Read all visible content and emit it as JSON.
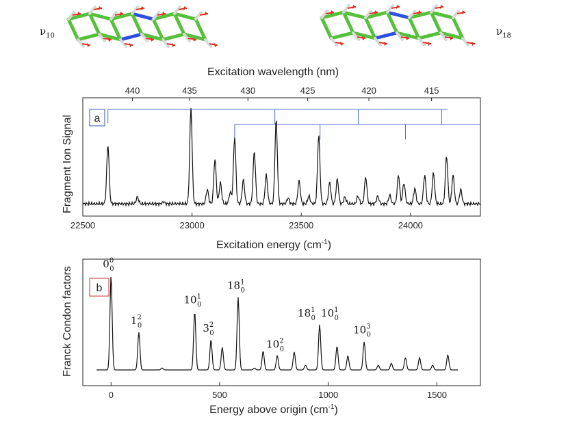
{
  "molecules": {
    "left_mode": {
      "greek": "ν",
      "sub": "10"
    },
    "right_mode": {
      "greek": "ν",
      "sub": "18"
    }
  },
  "chart_data": [
    {
      "panel": "a",
      "type": "line",
      "ylabel": "Fragment Ion Signal",
      "xlabel": "Excitation energy (cm",
      "xlabel_sup": "-1",
      "xlabel_end": ")",
      "top_axis_label": "Excitation wavelength (nm)",
      "xlim": [
        22500,
        24320
      ],
      "xticks": [
        22500,
        23000,
        23500,
        24000
      ],
      "top_ticks_nm": [
        440,
        435,
        430,
        425,
        420,
        415
      ],
      "grid": false,
      "peaks": [
        {
          "x": 22615,
          "h": 0.62
        },
        {
          "x": 22750,
          "h": 0.07
        },
        {
          "x": 22870,
          "h": 0.02
        },
        {
          "x": 22995,
          "h": 1.0
        },
        {
          "x": 23070,
          "h": 0.15
        },
        {
          "x": 23105,
          "h": 0.47
        },
        {
          "x": 23130,
          "h": 0.22
        },
        {
          "x": 23175,
          "h": 0.12
        },
        {
          "x": 23195,
          "h": 0.7
        },
        {
          "x": 23235,
          "h": 0.25
        },
        {
          "x": 23285,
          "h": 0.55
        },
        {
          "x": 23340,
          "h": 0.3
        },
        {
          "x": 23385,
          "h": 0.88
        },
        {
          "x": 23440,
          "h": 0.06
        },
        {
          "x": 23490,
          "h": 0.24
        },
        {
          "x": 23535,
          "h": 0.08
        },
        {
          "x": 23580,
          "h": 0.72
        },
        {
          "x": 23630,
          "h": 0.22
        },
        {
          "x": 23665,
          "h": 0.26
        },
        {
          "x": 23700,
          "h": 0.07
        },
        {
          "x": 23760,
          "h": 0.08
        },
        {
          "x": 23795,
          "h": 0.28
        },
        {
          "x": 23850,
          "h": 0.08
        },
        {
          "x": 23905,
          "h": 0.09
        },
        {
          "x": 23945,
          "h": 0.3
        },
        {
          "x": 23970,
          "h": 0.22
        },
        {
          "x": 24020,
          "h": 0.16
        },
        {
          "x": 24065,
          "h": 0.3
        },
        {
          "x": 24105,
          "h": 0.32
        },
        {
          "x": 24165,
          "h": 0.5
        },
        {
          "x": 24195,
          "h": 0.3
        },
        {
          "x": 24230,
          "h": 0.15
        }
      ],
      "progressions": [
        {
          "start": 22615,
          "spacing": 382,
          "count": 5,
          "line_end": 24170
        },
        {
          "start": 23195,
          "spacing": 391,
          "count": 3,
          "line_end": 24320
        }
      ]
    },
    {
      "panel": "b",
      "type": "line",
      "ylabel": "Franck Condon factors",
      "xlabel": "Energy above origin (cm",
      "xlabel_sup": "-1",
      "xlabel_end": ")",
      "xlim": [
        -130,
        1700
      ],
      "xticks": [
        0,
        500,
        1000,
        1500
      ],
      "grid": false,
      "peaks": [
        {
          "x": 0,
          "h": 1.0
        },
        {
          "x": 128,
          "h": 0.4
        },
        {
          "x": 235,
          "h": 0.02
        },
        {
          "x": 385,
          "h": 0.62
        },
        {
          "x": 460,
          "h": 0.32
        },
        {
          "x": 512,
          "h": 0.24
        },
        {
          "x": 585,
          "h": 0.77
        },
        {
          "x": 660,
          "h": 0.02
        },
        {
          "x": 700,
          "h": 0.2
        },
        {
          "x": 765,
          "h": 0.15
        },
        {
          "x": 843,
          "h": 0.19
        },
        {
          "x": 895,
          "h": 0.05
        },
        {
          "x": 960,
          "h": 0.48
        },
        {
          "x": 1040,
          "h": 0.25
        },
        {
          "x": 1090,
          "h": 0.15
        },
        {
          "x": 1165,
          "h": 0.3
        },
        {
          "x": 1230,
          "h": 0.05
        },
        {
          "x": 1290,
          "h": 0.07
        },
        {
          "x": 1355,
          "h": 0.13
        },
        {
          "x": 1420,
          "h": 0.13
        },
        {
          "x": 1480,
          "h": 0.05
        },
        {
          "x": 1550,
          "h": 0.16
        }
      ],
      "annotations": [
        {
          "base": "0",
          "sup": "0",
          "sub": "0",
          "x": 0,
          "y": 1.0
        },
        {
          "base": "1",
          "sup": "2",
          "sub": "0",
          "x": 128,
          "y": 0.4
        },
        {
          "base": "10",
          "sup": "1",
          "sub": "0",
          "x": 385,
          "y": 0.62
        },
        {
          "base": "3",
          "sup": "2",
          "sub": "0",
          "x": 460,
          "y": 0.32
        },
        {
          "base": "18",
          "sup": "1",
          "sub": "0",
          "x": 585,
          "y": 0.77
        },
        {
          "base": "10",
          "sup": "2",
          "sub": "0",
          "x": 765,
          "y": 0.15
        },
        {
          "base": "18",
          "sup": "1",
          "sub": "0",
          "base2": "10",
          "sup2": "1",
          "sub2": "0",
          "x": 960,
          "y": 0.48
        },
        {
          "base": "10",
          "sup": "3",
          "sub": "0",
          "x": 1165,
          "y": 0.3
        }
      ]
    }
  ],
  "colors": {
    "progression": "#4a6fd0",
    "panel_a_box": "#3555b0",
    "panel_b_box": "#c03030",
    "bond_carbon": "#55c13a",
    "nitrogen": "#2f4fe0",
    "hydrogen": "#d8d8d8",
    "arrow": "#e03020"
  }
}
